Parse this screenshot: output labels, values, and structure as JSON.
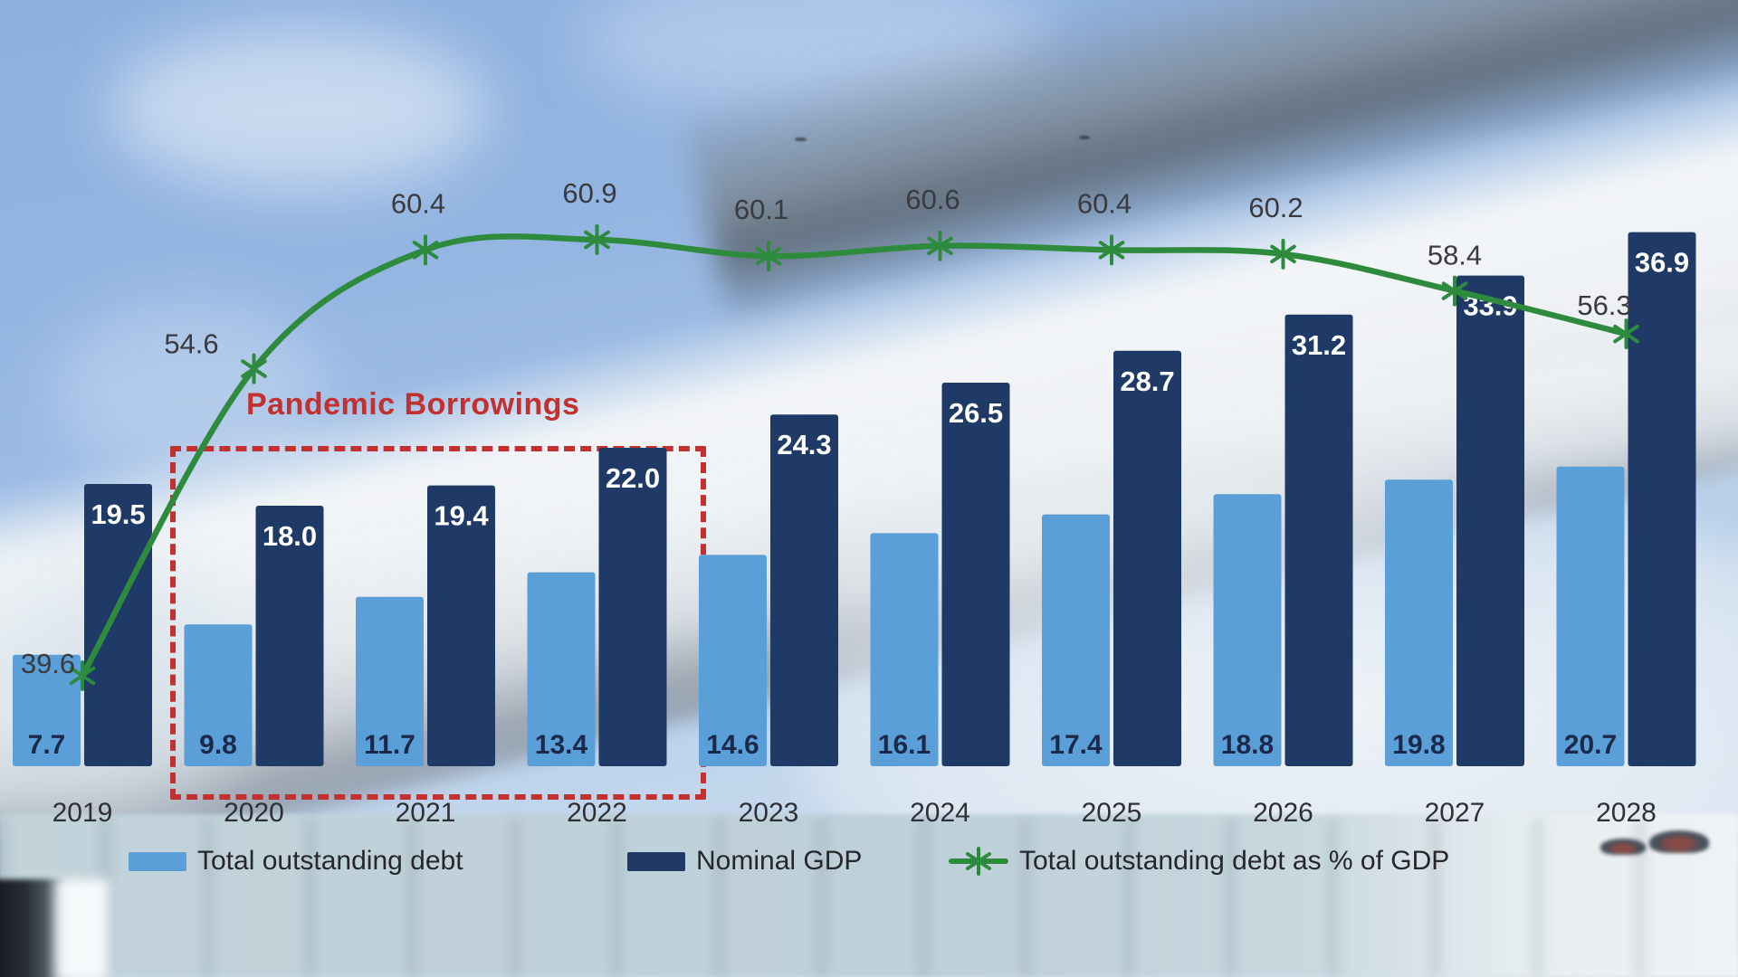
{
  "chart_data": {
    "type": "bar",
    "subtype": "grouped-bars-with-line-overlay",
    "categories": [
      "2019",
      "2020",
      "2021",
      "2022",
      "2023",
      "2024",
      "2025",
      "2026",
      "2027",
      "2028"
    ],
    "series": [
      {
        "name": "Total outstanding debt",
        "type": "bar",
        "color": "#5B9FD8",
        "label_color": "#1b2a4a",
        "values": [
          7.7,
          9.8,
          11.7,
          13.4,
          14.6,
          16.1,
          17.4,
          18.8,
          19.8,
          20.7
        ]
      },
      {
        "name": "Nominal GDP",
        "type": "bar",
        "color": "#1F3A66",
        "label_color": "#ffffff",
        "values": [
          19.5,
          18.0,
          19.4,
          22.0,
          24.3,
          26.5,
          28.7,
          31.2,
          33.9,
          36.9
        ]
      },
      {
        "name": "Total outstanding debt as % of GDP",
        "type": "line",
        "color": "#2E8B3E",
        "label_color": "#3a3a40",
        "values": [
          39.6,
          54.6,
          60.4,
          60.9,
          60.1,
          60.6,
          60.4,
          60.2,
          58.4,
          56.3
        ]
      }
    ],
    "annotation": {
      "label": "Pandemic Borrowings",
      "highlight_years": [
        "2020",
        "2021",
        "2022"
      ],
      "color": "#C23030"
    },
    "legend_position": "bottom",
    "value_labels": true,
    "axes_visible": false
  }
}
